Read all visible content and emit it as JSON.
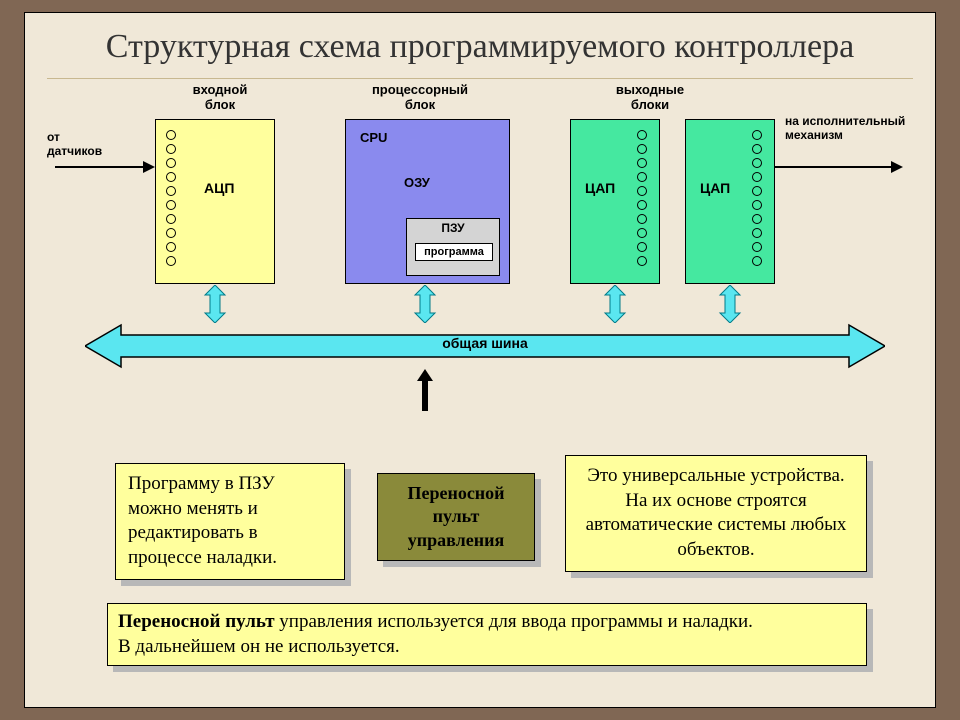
{
  "slide": {
    "title": "Структурная схема программируемого контроллера",
    "background": "#f0e8d8",
    "frame_background": "#806754"
  },
  "labels": {
    "input_block": "входной\nблок",
    "processor_block": "процессорный\nблок",
    "output_blocks": "выходные\nблоки",
    "from_sensors": "от\nдатчиков",
    "to_actuator": "на исполнительный\nмеханизм"
  },
  "blocks": {
    "adc": {
      "label": "АЦП",
      "color": "#ffff9d",
      "dot_count": 10
    },
    "cpu": {
      "cpu_label": "CPU",
      "ram_label": "ОЗУ",
      "rom_label": "ПЗУ",
      "program_label": "программа",
      "color": "#8a8aee"
    },
    "dac1": {
      "label": "ЦАП",
      "color": "#45e8a0",
      "dot_count": 10
    },
    "dac2": {
      "label": "ЦАП",
      "color": "#45e8a0",
      "dot_count": 10
    }
  },
  "bus": {
    "label": "общая шина",
    "fill": "#5ae6f0",
    "stroke": "#000000"
  },
  "arrows": {
    "bidir_fill": "#5ae6f0",
    "bidir_stroke": "#007a88",
    "black": "#000000"
  },
  "callouts": {
    "left": "Программу в ПЗУ можно менять и редактировать в процессе наладки.",
    "center": "Переносной\nпульт\nуправления",
    "right": "Это универсальные устройства. На их основе строятся автоматические системы любых объектов.",
    "bottom": "Переносной пульт управления используется для  ввода программы и наладки.\n В дальнейшем он не используется."
  },
  "colors": {
    "callout_yellow": "#ffff9d",
    "callout_olive": "#8a8a3a",
    "shadow": "#b8b8b8"
  }
}
